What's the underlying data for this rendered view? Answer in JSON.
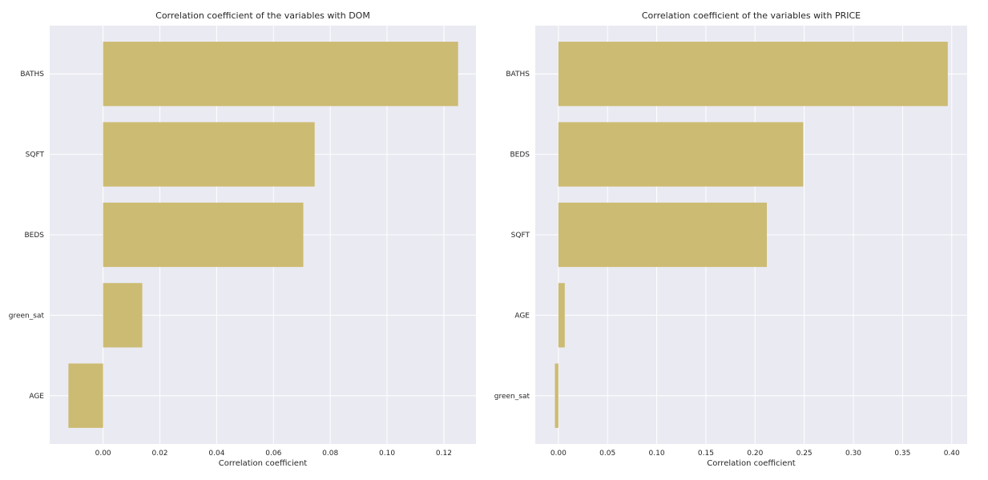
{
  "colors": {
    "bar": "#ccbb72",
    "panel_background": "#eaeaf2",
    "grid": "#ffffff",
    "text": "#262626"
  },
  "chart_data": [
    {
      "type": "bar",
      "orientation": "horizontal",
      "title": "Correlation coefficient of the variables with DOM",
      "xlabel": "Correlation coefficient",
      "ylabel": "",
      "categories": [
        "BATHS",
        "SQFT",
        "BEDS",
        "green_sat",
        "AGE"
      ],
      "values": [
        0.125,
        0.0745,
        0.0705,
        0.0138,
        -0.0122
      ],
      "xlim": [
        -0.0188,
        0.1313
      ],
      "xticks": [
        0.0,
        0.02,
        0.04,
        0.06,
        0.08,
        0.1,
        0.12
      ],
      "xtick_labels": [
        "0.00",
        "0.02",
        "0.04",
        "0.06",
        "0.08",
        "0.10",
        "0.12"
      ],
      "grid": true,
      "legend": "none"
    },
    {
      "type": "bar",
      "orientation": "horizontal",
      "title": "Correlation coefficient of the variables with PRICE",
      "xlabel": "Correlation coefficient",
      "ylabel": "",
      "categories": [
        "BATHS",
        "BEDS",
        "SQFT",
        "AGE",
        "green_sat"
      ],
      "values": [
        0.396,
        0.249,
        0.212,
        0.0065,
        -0.0035
      ],
      "xlim": [
        -0.0235,
        0.4157
      ],
      "xticks": [
        0.0,
        0.05,
        0.1,
        0.15,
        0.2,
        0.25,
        0.3,
        0.35,
        0.4
      ],
      "xtick_labels": [
        "0.00",
        "0.05",
        "0.10",
        "0.15",
        "0.20",
        "0.25",
        "0.30",
        "0.35",
        "0.40"
      ],
      "grid": true,
      "legend": "none"
    }
  ]
}
